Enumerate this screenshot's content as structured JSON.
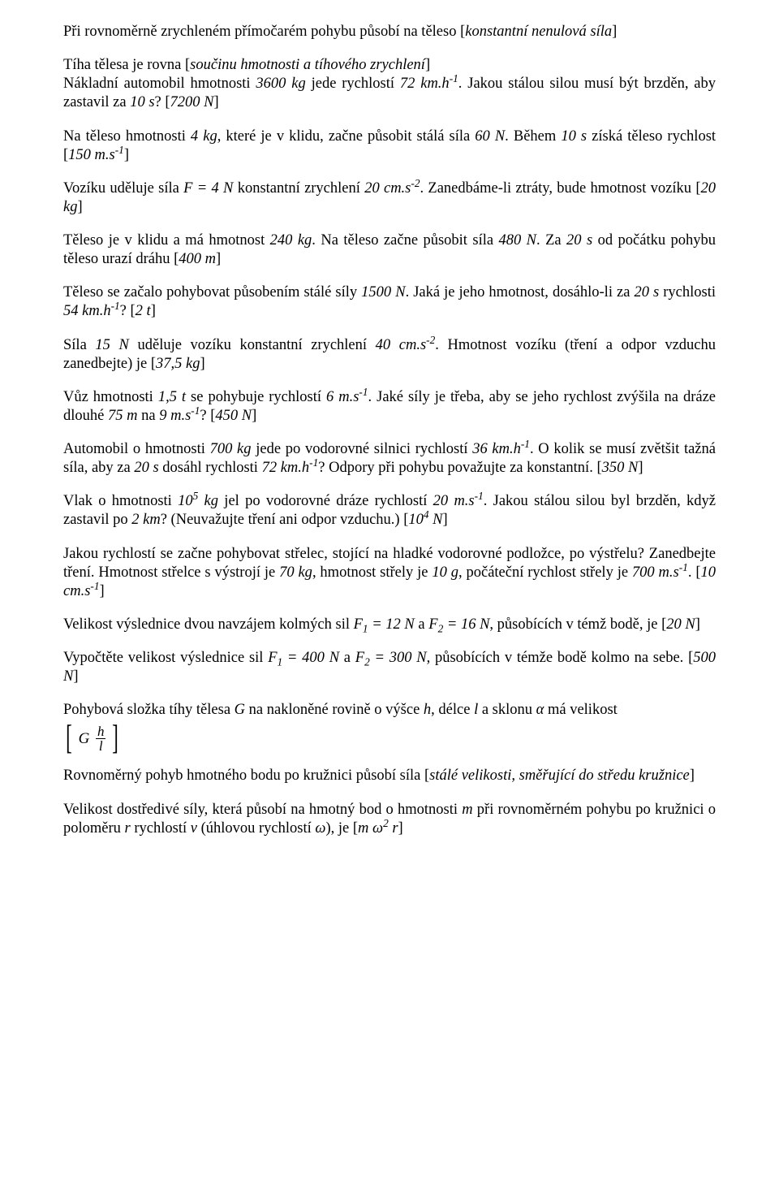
{
  "text_color": "#000000",
  "background_color": "#ffffff",
  "font_family": "Times New Roman",
  "font_size_pt": 12,
  "p1": "Při rovnoměrně zrychleném přímočarém pohybu působí na těleso  [",
  "p1i": "konstantní nenulová síla",
  "p1b": "]",
  "p2a": "Tíha tělesa je rovna  [",
  "p2i": "součinu hmotnosti a tíhového zrychlení",
  "p2b": "]",
  "p3a": "Nákladní automobil hmotnosti ",
  "p3i1": "3600 kg",
  "p3b": " jede rychlostí ",
  "p3i2": "72 km.h",
  "p3sup": "-1",
  "p3c": ". Jakou stálou silou musí být brzděn, aby zastavil za ",
  "p3i3": "10 s",
  "p3d": "?  [",
  "p3i4": "7200 N",
  "p3e": "]",
  "p4a": "Na těleso hmotnosti ",
  "p4i1": "4 kg",
  "p4b": ", které je v klidu, začne působit stálá síla ",
  "p4i2": "60 N",
  "p4c": ". Během ",
  "p4i3": "10 s",
  "p4d": " získá těleso rychlost  [",
  "p4i4": "150 m.s",
  "p4sup": "-1",
  "p4e": "]",
  "p5a": "Vozíku uděluje síla ",
  "p5i1": "F  =  4 N",
  "p5b": " konstantní zrychlení ",
  "p5i2": "20 cm.s",
  "p5sup": "-2",
  "p5c": ". Zanedbáme-li ztráty, bude hmotnost vozíku  [",
  "p5i3": "20 kg",
  "p5d": "]",
  "p6a": "Těleso je v klidu a má hmotnost ",
  "p6i1": "240 kg",
  "p6b": ". Na těleso začne působit síla ",
  "p6i2": "480 N",
  "p6c": ". Za ",
  "p6i3": "20 s",
  "p6d": " od počátku pohybu těleso urazí dráhu  [",
  "p6i4": "400 m",
  "p6e": "]",
  "p7a": "Těleso se začalo pohybovat působením stálé síly ",
  "p7i1": "1500 N",
  "p7b": ". Jaká je jeho hmotnost, dosáhlo-li za ",
  "p7i2": "20 s",
  "p7c": " rychlosti ",
  "p7i3": "54 km.h",
  "p7sup": "-1",
  "p7d": "?   [",
  "p7i4": "2 t",
  "p7e": "]",
  "p8a": "Síla ",
  "p8i1": "15 N",
  "p8b": " uděluje vozíku konstantní zrychlení ",
  "p8i2": "40 cm.s",
  "p8sup": "-2",
  "p8c": ". Hmotnost vozíku (tření a odpor vzduchu zanedbejte) je  [",
  "p8i3": "37,5 kg",
  "p8d": "]",
  "p9a": "Vůz hmotnosti ",
  "p9i1": "1,5 t",
  "p9b": " se pohybuje rychlostí ",
  "p9i2": "6 m.s",
  "p9sup1": "-1",
  "p9c": ". Jaké síly je třeba, aby se jeho rychlost zvýšila na dráze dlouhé ",
  "p9i3": "75 m",
  "p9d": " na ",
  "p9i4": "9 m.s",
  "p9sup2": "-1",
  "p9e": "?  [",
  "p9i5": "450 N",
  "p9f": "]",
  "p10a": "Automobil o hmotnosti ",
  "p10i1": "700 kg",
  "p10b": " jede po vodorovné silnici rychlostí ",
  "p10i2": "36 km.h",
  "p10sup1": "-1",
  "p10c": ". O kolik se musí zvětšit tažná síla, aby za ",
  "p10i3": "20 s",
  "p10d": " dosáhl rychlosti ",
  "p10i4": "72 km.h",
  "p10sup2": "-1",
  "p10e": "? Odpory při pohybu považujte za konstantní.  [",
  "p10i5": "350 N",
  "p10f": "]",
  "p11a": "Vlak o hmotnosti ",
  "p11i1": "10",
  "p11sup1": "5",
  "p11i1b": " kg",
  "p11b": " jel po vodorovné dráze rychlostí ",
  "p11i2": "20 m.s",
  "p11sup2": "-1",
  "p11c": ". Jakou stálou silou byl brzděn, když zastavil po ",
  "p11i3": "2 km",
  "p11d": "? (Neuvažujte tření ani odpor vzduchu.)  [",
  "p11i4": "10",
  "p11sup3": "4",
  "p11i4b": " N",
  "p11e": "]",
  "p12a": "Jakou rychlostí se začne pohybovat střelec, stojící na hladké vodorovné podložce, po výstřelu? Zanedbejte tření. Hmotnost střelce s výstrojí je ",
  "p12i1": "70 kg",
  "p12b": ", hmotnost střely je ",
  "p12i2": "10 g",
  "p12c": ", počáteční rychlost střely je ",
  "p12i3": "700 m.s",
  "p12sup1": "-1",
  "p12d": ".  [",
  "p12i4": "10 cm.s",
  "p12sup2": "-1",
  "p12e": "]",
  "p13a": "Velikost výslednice dvou navzájem kolmých sil ",
  "p13i1": "F",
  "p13sub1": "1",
  "p13i1b": " = 12 N",
  "p13b": " a ",
  "p13i2": "F",
  "p13sub2": "2",
  "p13i2b": " = 16 N",
  "p13c": ", působících v témž bodě, je  [",
  "p13i3": "20 N",
  "p13d": "]",
  "p14a": "Vypočtěte velikost výslednice sil ",
  "p14i1": "F",
  "p14sub1": "1",
  "p14i1b": " = 400 N",
  "p14b": " a ",
  "p14i2": "F",
  "p14sub2": "2",
  "p14i2b": " = 300 N",
  "p14c": ", působících v témže bodě kolmo na sebe.  [",
  "p14i3": "500 N",
  "p14d": "]",
  "p15a": "Pohybová složka tíhy tělesa ",
  "p15i1": "G",
  "p15b": " na nakloněné rovině o výšce ",
  "p15i2": "h",
  "p15c": ", délce ",
  "p15i3": "l",
  "p15d": " a sklonu ",
  "p15i4": "α",
  "p15e": " má velikost",
  "frac_G": "G",
  "frac_num": "h",
  "frac_den": "l",
  "p16a": "Rovnoměrný pohyb hmotného bodu po kružnici působí síla  [",
  "p16i": "stálé velikosti, směřující do středu kružnice",
  "p16b": "]",
  "p17a": "Velikost dostředivé síly, která působí na hmotný bod o hmotnosti ",
  "p17i1": "m",
  "p17b": " při rovnoměrném pohybu po kružnici o poloměru ",
  "p17i2": "r",
  "p17c": " rychlostí ",
  "p17i3": "v",
  "p17d": " (úhlovou rychlostí ",
  "p17i4": "ω",
  "p17e": "), je  [",
  "p17i5": "m ω",
  "p17sup": "2",
  "p17i5b": " r",
  "p17f": "]"
}
